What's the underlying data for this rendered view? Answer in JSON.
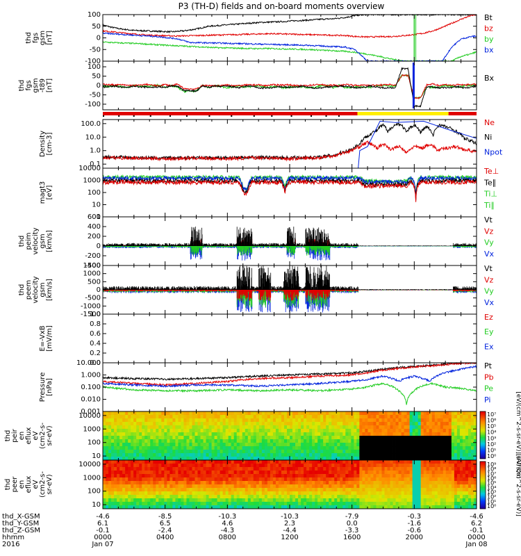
{
  "title": "P3 (TH-D) fields and on-board moments overview",
  "colors": {
    "black": "#000000",
    "red": "#e00000",
    "green": "#22cc22",
    "blue": "#0022dd",
    "yellow": "#ffee00"
  },
  "chart_data": {
    "type": "line",
    "panels": [
      {
        "id": "fgs",
        "ylabel": [
          "thd",
          "fgs",
          "gsm",
          "[nT]"
        ],
        "ylim": [
          -100,
          100
        ],
        "ticks": [
          "100",
          "50",
          "0",
          "-50",
          "-100"
        ],
        "legend": [
          {
            "t": "Bt",
            "c": "black"
          },
          {
            "t": "bz",
            "c": "red"
          },
          {
            "t": "by",
            "c": "green"
          },
          {
            "t": "bx",
            "c": "blue"
          }
        ]
      },
      {
        "id": "fgs_dif",
        "ylabel": [
          "thd",
          "fgs",
          "gsm",
          "-t89",
          "[nT]"
        ],
        "ylim": [
          -130,
          130
        ],
        "ticks": [
          "100",
          "50",
          "0",
          "-50",
          "-100"
        ],
        "legend": [
          {
            "t": "Bx",
            "c": "black"
          }
        ]
      },
      {
        "id": "density",
        "ylabel": [
          "Density",
          "[cm-3]"
        ],
        "ylim": [
          0.05,
          200
        ],
        "log": true,
        "ticks": [
          "100.0",
          "10.0",
          "1.0",
          "0.1"
        ],
        "legend": [
          {
            "t": "Ne",
            "c": "red"
          },
          {
            "t": "Ni",
            "c": "black"
          },
          {
            "t": "Npot",
            "c": "blue"
          }
        ]
      },
      {
        "id": "temp",
        "ylabel": [
          "magt3",
          "[eV]"
        ],
        "ylim": [
          1,
          10000
        ],
        "log": true,
        "ticks": [
          "10000",
          "1000",
          "100",
          "10",
          "1"
        ],
        "legend": [
          {
            "t": "Te⊥",
            "c": "red"
          },
          {
            "t": "Te∥",
            "c": "black"
          },
          {
            "t": "Ti⊥",
            "c": "green"
          },
          {
            "t": "Ti∥",
            "c": "green"
          }
        ]
      },
      {
        "id": "vi",
        "ylabel": [
          "thd",
          "peim",
          "velocity",
          "gsm",
          "[km/s]"
        ],
        "ylim": [
          -400,
          600
        ],
        "ticks": [
          "600",
          "400",
          "200",
          "0",
          "-200",
          "-400"
        ],
        "legend": [
          {
            "t": "Vt",
            "c": "black"
          },
          {
            "t": "Vz",
            "c": "red"
          },
          {
            "t": "Vy",
            "c": "green"
          },
          {
            "t": "Vx",
            "c": "blue"
          }
        ]
      },
      {
        "id": "ve",
        "ylabel": [
          "thd",
          "peem",
          "velocity",
          "gsm",
          "[km/s]"
        ],
        "ylim": [
          -1500,
          1500
        ],
        "ticks": [
          "1500",
          "1000",
          "500",
          "0",
          "-500",
          "-1000",
          "-1500"
        ],
        "legend": [
          {
            "t": "Vt",
            "c": "black"
          },
          {
            "t": "Vz",
            "c": "red"
          },
          {
            "t": "Vy",
            "c": "green"
          },
          {
            "t": "Vx",
            "c": "blue"
          }
        ]
      },
      {
        "id": "efield",
        "ylabel": [
          "E=-VxB",
          "[mV/m]"
        ],
        "ylim": [
          0,
          1
        ],
        "ticks": [
          "1.0",
          "0.8",
          "0.6",
          "0.4",
          "0.2",
          "0.0"
        ],
        "legend": [
          {
            "t": "Ez",
            "c": "red"
          },
          {
            "t": "Ey",
            "c": "green"
          },
          {
            "t": "Ex",
            "c": "blue"
          }
        ]
      },
      {
        "id": "pressure",
        "ylabel": [
          "Pressure",
          "[nPa]"
        ],
        "ylim": [
          0.001,
          10
        ],
        "log": true,
        "ticks": [
          "10.000",
          "1.000",
          "0.100",
          "0.010",
          "0.001"
        ],
        "legend": [
          {
            "t": "Pt",
            "c": "black"
          },
          {
            "t": "Pb",
            "c": "red"
          },
          {
            "t": "Pe",
            "c": "green"
          },
          {
            "t": "Pi",
            "c": "blue"
          }
        ]
      },
      {
        "id": "ion_spec",
        "ylabel": [
          "thd",
          "peir",
          "en",
          "eflux",
          "eV",
          "(cm2-s-",
          "sr-eV)"
        ],
        "ylim": [
          5,
          20000
        ],
        "log": true,
        "ticks": [
          "10000",
          "1000",
          "100",
          "10"
        ],
        "colorbar_label": "[eV/(cm^2-s-sr-eV)] (All Qs)",
        "colorbar_ticks": [
          "10⁷",
          "10⁶",
          "10⁵",
          "10⁴",
          "10³",
          "10²",
          "10¹",
          "10⁰"
        ]
      },
      {
        "id": "elec_spec",
        "ylabel": [
          "thd",
          "peer",
          "en",
          "eflux",
          "eV",
          "(cm2-s-",
          "sr-eV)"
        ],
        "ylim": [
          5,
          20000
        ],
        "log": true,
        "ticks": [
          "10000",
          "1000",
          "100",
          "10"
        ],
        "colorbar_label": "[eV/(cm^2-s-sr-eV)]",
        "colorbar_ticks": [
          "10⁹",
          "10⁸",
          "10⁷",
          "10⁶",
          "10⁵",
          "10⁴",
          "10³",
          "10²",
          "10¹",
          "10⁰"
        ]
      }
    ],
    "x_labels": {
      "rows": [
        "thd_X-GSM",
        "thd_Y-GSM",
        "thd_Z-GSM",
        "hhmm",
        "2016"
      ],
      "columns": [
        [
          "-4.6",
          "6.1",
          "-0.1",
          "0000",
          "Jan 07"
        ],
        [
          "-8.5",
          "6.5",
          "-2.4",
          "0400",
          ""
        ],
        [
          "-10.3",
          "4.6",
          "-4.3",
          "0800",
          ""
        ],
        [
          "-10.3",
          "2.3",
          "-4.4",
          "1200",
          ""
        ],
        [
          "-7.9",
          "0.0",
          "-3.3",
          "1600",
          ""
        ],
        [
          "-0.3",
          "-1.6",
          "-0.6",
          "2000",
          ""
        ],
        [
          "-4.6",
          "6.2",
          "-0.1",
          "0000",
          "Jan 08"
        ]
      ]
    },
    "mode_bar": [
      {
        "from": 0,
        "to": 1635,
        "color": "red"
      },
      {
        "from": 1635,
        "to": 2220,
        "color": "yellow"
      },
      {
        "from": 2220,
        "to": 2400,
        "color": "red"
      }
    ],
    "fgs_series": [
      {
        "name": "Bt",
        "color": "black",
        "x": [
          0,
          60,
          120,
          200,
          280,
          360,
          440,
          520,
          600,
          680,
          760,
          840,
          920,
          1000,
          1080,
          1160,
          1240,
          1320,
          1400,
          1480,
          1560,
          1620,
          1700,
          1780,
          1860,
          1940,
          2000,
          2060,
          2120,
          2180,
          2240,
          2300,
          2360,
          2400
        ],
        "y": [
          55,
          45,
          38,
          32,
          30,
          28,
          26,
          30,
          38,
          50,
          54,
          58,
          62,
          66,
          68,
          70,
          74,
          76,
          80,
          82,
          88,
          96,
          100,
          100,
          100,
          100,
          100,
          100,
          100,
          100,
          100,
          100,
          100,
          100
        ]
      },
      {
        "name": "bz",
        "color": "red",
        "x": [
          0,
          120,
          240,
          360,
          480,
          600,
          720,
          840,
          960,
          1080,
          1200,
          1320,
          1440,
          1560,
          1620,
          1700,
          1780,
          1860,
          1940,
          2000,
          2060,
          2120,
          2180,
          2240,
          2300,
          2360,
          2400
        ],
        "y": [
          30,
          22,
          14,
          10,
          8,
          10,
          12,
          14,
          16,
          18,
          16,
          14,
          12,
          10,
          6,
          4,
          5,
          6,
          10,
          14,
          20,
          30,
          45,
          62,
          80,
          95,
          100
        ]
      },
      {
        "name": "by",
        "color": "green",
        "x": [
          0,
          120,
          240,
          360,
          480,
          600,
          720,
          840,
          960,
          1080,
          1200,
          1320,
          1440,
          1560,
          1620,
          1700,
          1780,
          1860,
          1940,
          2000,
          2060,
          2120,
          2180,
          2240,
          2300,
          2360,
          2400
        ],
        "y": [
          -18,
          -22,
          -25,
          -30,
          -34,
          -38,
          -42,
          -44,
          -46,
          -46,
          -48,
          -50,
          -54,
          -58,
          -62,
          -70,
          -80,
          -92,
          -100,
          -100,
          -100,
          -100,
          -100,
          -100,
          -80,
          -70,
          -60
        ]
      },
      {
        "name": "bx",
        "color": "blue",
        "x": [
          0,
          120,
          240,
          360,
          480,
          560,
          720,
          840,
          960,
          1080,
          1200,
          1320,
          1440,
          1560,
          1620,
          1700,
          2180,
          2240,
          2300,
          2360,
          2400
        ],
        "y": [
          20,
          15,
          10,
          5,
          -4,
          -20,
          -22,
          -24,
          -26,
          -28,
          -30,
          -32,
          -36,
          -40,
          -50,
          -100,
          -100,
          -40,
          -5,
          5,
          8
        ]
      }
    ],
    "density_series": [
      {
        "name": "Ni",
        "color": "black",
        "x": [
          0,
          200,
          400,
          600,
          800,
          1000,
          1200,
          1400,
          1500,
          1600,
          1650,
          1700,
          1760,
          1800,
          1830,
          1860,
          1900,
          1950,
          2000,
          2040,
          2080,
          2120,
          2160,
          2200,
          2260,
          2320,
          2400
        ],
        "y": [
          0.35,
          0.3,
          0.28,
          0.3,
          0.3,
          0.32,
          0.3,
          0.33,
          0.5,
          1.2,
          3,
          12,
          30,
          80,
          20,
          60,
          100,
          20,
          80,
          20,
          60,
          10,
          80,
          60,
          30,
          8,
          3
        ]
      },
      {
        "name": "Ne",
        "color": "red",
        "x": [
          0,
          200,
          400,
          600,
          800,
          1000,
          1200,
          1400,
          1500,
          1600,
          1650,
          1700,
          1760,
          1800,
          1850,
          1900,
          1950,
          2000,
          2050,
          2100,
          2150,
          2200,
          2260,
          2320,
          2400
        ],
        "y": [
          0.3,
          0.28,
          0.25,
          0.28,
          0.25,
          0.3,
          0.25,
          0.3,
          0.45,
          1.0,
          2,
          4,
          1.5,
          3,
          1.2,
          2,
          0.6,
          2,
          1.5,
          3,
          1,
          1.5,
          2,
          1.2,
          0.8
        ]
      }
    ],
    "pressure_series": [
      {
        "name": "Pt",
        "color": "black",
        "x": [
          0,
          200,
          400,
          600,
          800,
          1000,
          1200,
          1400,
          1600,
          1700,
          1800,
          1900,
          2000,
          2100,
          2200,
          2300,
          2400
        ],
        "y": [
          0.6,
          0.5,
          0.45,
          0.5,
          0.6,
          0.8,
          1.0,
          1.2,
          1.5,
          2,
          3,
          4,
          5,
          6,
          8,
          10,
          10
        ]
      },
      {
        "name": "Pb",
        "color": "red",
        "x": [
          0,
          200,
          400,
          600,
          800,
          1000,
          1200,
          1400,
          1600,
          1700,
          1800,
          1900,
          2000,
          2100,
          2200,
          2300,
          2400
        ],
        "y": [
          0.3,
          0.2,
          0.15,
          0.2,
          0.3,
          0.5,
          0.6,
          0.8,
          1.0,
          1.5,
          2.5,
          3.5,
          4.5,
          5.5,
          7,
          9,
          10
        ]
      },
      {
        "name": "Pe",
        "color": "green",
        "x": [
          0,
          200,
          400,
          600,
          800,
          1000,
          1200,
          1400,
          1600,
          1700,
          1800,
          1900,
          1950,
          2000,
          2100,
          2200,
          2300,
          2400
        ],
        "y": [
          0.1,
          0.06,
          0.05,
          0.05,
          0.06,
          0.05,
          0.06,
          0.05,
          0.07,
          0.1,
          0.2,
          0.05,
          0.003,
          0.05,
          0.2,
          0.1,
          0.08,
          0.05
        ]
      },
      {
        "name": "Pi",
        "color": "blue",
        "x": [
          0,
          200,
          400,
          600,
          800,
          1000,
          1200,
          1400,
          1600,
          1700,
          1800,
          1900,
          2000,
          2100,
          2200,
          2300,
          2400
        ],
        "y": [
          0.2,
          0.15,
          0.12,
          0.15,
          0.15,
          0.12,
          0.15,
          0.2,
          0.3,
          0.4,
          0.8,
          0.3,
          0.8,
          0.3,
          1.5,
          3,
          5
        ]
      }
    ]
  }
}
